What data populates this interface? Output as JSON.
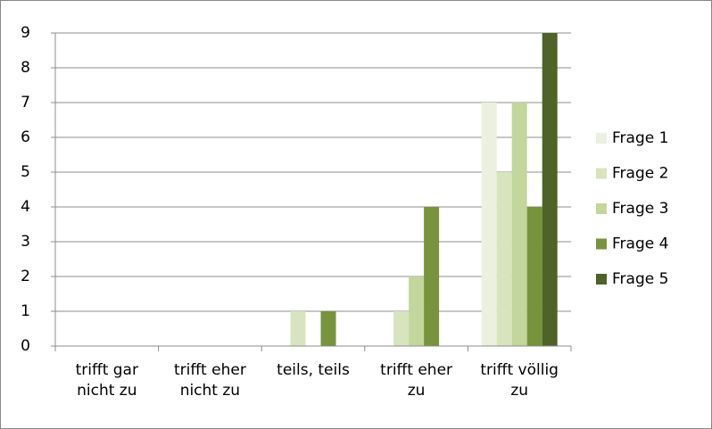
{
  "chart_data": {
    "type": "bar",
    "categories": [
      "trifft gar nicht zu",
      "trifft eher nicht zu",
      "teils, teils",
      "trifft eher zu",
      "trifft völlig zu"
    ],
    "series": [
      {
        "name": "Frage 1",
        "color": "#ebf1de",
        "values": [
          0,
          0,
          0,
          0,
          7
        ]
      },
      {
        "name": "Frage 2",
        "color": "#d7e4bd",
        "values": [
          0,
          0,
          1,
          1,
          5
        ]
      },
      {
        "name": "Frage 3",
        "color": "#c3d69b",
        "values": [
          0,
          0,
          0,
          2,
          7
        ]
      },
      {
        "name": "Frage 4",
        "color": "#77933c",
        "values": [
          0,
          0,
          1,
          4,
          4
        ]
      },
      {
        "name": "Frage 5",
        "color": "#4f6228",
        "values": [
          0,
          0,
          0,
          0,
          9
        ]
      }
    ],
    "ylim": [
      0,
      9
    ],
    "yticks": [
      0,
      1,
      2,
      3,
      4,
      5,
      6,
      7,
      8,
      9
    ],
    "grid": true,
    "legend": "right"
  }
}
